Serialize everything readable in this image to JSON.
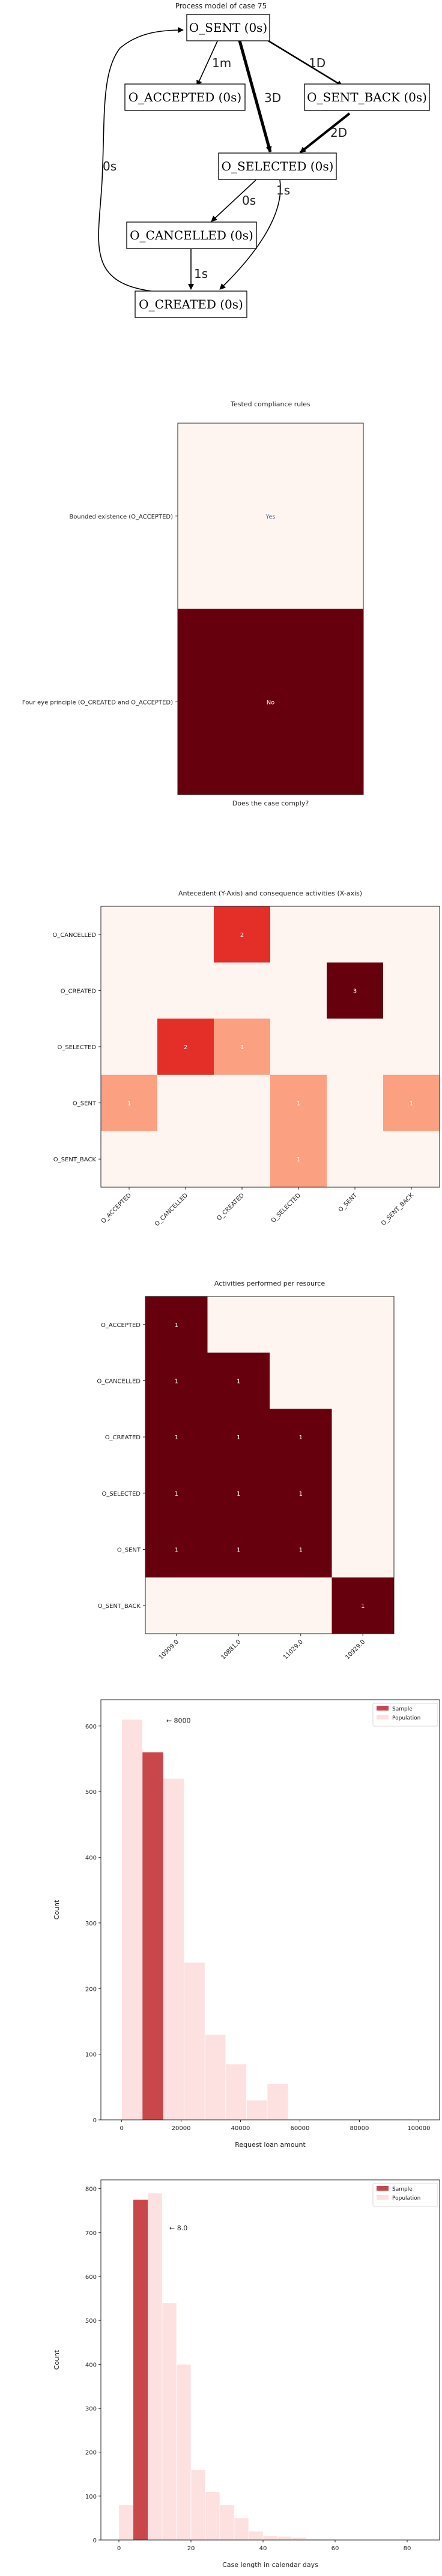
{
  "process_model": {
    "title": "Process model of case 75",
    "nodes": [
      {
        "id": "O_SENT",
        "label": "O_SENT (0s)"
      },
      {
        "id": "O_ACCEPTED",
        "label": "O_ACCEPTED (0s)"
      },
      {
        "id": "O_SENT_BACK",
        "label": "O_SENT_BACK (0s)"
      },
      {
        "id": "O_SELECTED",
        "label": "O_SELECTED (0s)"
      },
      {
        "id": "O_CANCELLED",
        "label": "O_CANCELLED (0s)"
      },
      {
        "id": "O_CREATED",
        "label": "O_CREATED (0s)"
      }
    ],
    "edges": [
      {
        "from": "O_SENT",
        "to": "O_ACCEPTED",
        "label": "1m"
      },
      {
        "from": "O_SENT",
        "to": "O_SELECTED",
        "label": "3D"
      },
      {
        "from": "O_SENT",
        "to": "O_SENT_BACK",
        "label": "1D"
      },
      {
        "from": "O_SENT_BACK",
        "to": "O_SELECTED",
        "label": "2D"
      },
      {
        "from": "O_SELECTED",
        "to": "O_CANCELLED",
        "label": "0s"
      },
      {
        "from": "O_SELECTED",
        "to": "O_CREATED",
        "label": "1s"
      },
      {
        "from": "O_CANCELLED",
        "to": "O_CREATED",
        "label": "1s"
      },
      {
        "from": "O_CREATED",
        "to": "O_SENT",
        "label": "0s"
      }
    ]
  },
  "chart_data": [
    {
      "type": "heatmap",
      "title": "Tested compliance rules",
      "xlabel": "Does the case comply?",
      "ylabel": "",
      "rows": [
        "Bounded existence (O_ACCEPTED)",
        "Four eye principle (O_CREATED and O_ACCEPTED)"
      ],
      "columns": [],
      "values": [
        [
          0
        ],
        [
          1
        ]
      ],
      "cell_labels": [
        [
          "Yes"
        ],
        [
          "No"
        ]
      ],
      "colors": {
        "low": "#fff5f0",
        "high": "#67000d",
        "label_low": "#4a6fa5",
        "label_high": "#ffffff"
      }
    },
    {
      "type": "heatmap",
      "title": "Antecedent (Y-Axis) and consequence activities (X-axis)",
      "xlabel": "",
      "ylabel": "",
      "rows": [
        "O_CANCELLED",
        "O_CREATED",
        "O_SELECTED",
        "O_SENT",
        "O_SENT_BACK"
      ],
      "columns": [
        "O_ACCEPTED",
        "O_CANCELLED",
        "O_CREATED",
        "O_SELECTED",
        "O_SENT",
        "O_SENT_BACK"
      ],
      "values": [
        [
          0,
          0,
          2,
          0,
          0,
          0
        ],
        [
          0,
          0,
          0,
          0,
          3,
          0
        ],
        [
          0,
          2,
          1,
          0,
          0,
          0
        ],
        [
          1,
          0,
          0,
          1,
          0,
          1
        ],
        [
          0,
          0,
          0,
          1,
          0,
          0
        ]
      ],
      "cell_labels": [
        [
          "",
          "",
          "2",
          "",
          "",
          ""
        ],
        [
          "",
          "",
          "",
          "",
          "3",
          ""
        ],
        [
          "",
          "2",
          "1",
          "",
          "",
          ""
        ],
        [
          "1",
          "",
          "",
          "1",
          "",
          "1"
        ],
        [
          "",
          "",
          "",
          "1",
          "",
          ""
        ]
      ]
    },
    {
      "type": "heatmap",
      "title": "Activities performed per resource",
      "xlabel": "",
      "ylabel": "",
      "rows": [
        "O_ACCEPTED",
        "O_CANCELLED",
        "O_CREATED",
        "O_SELECTED",
        "O_SENT",
        "O_SENT_BACK"
      ],
      "columns": [
        "10909.0",
        "10881.0",
        "11029.0",
        "10929.0"
      ],
      "values": [
        [
          1,
          0,
          0,
          0
        ],
        [
          1,
          1,
          0,
          0
        ],
        [
          1,
          1,
          1,
          0
        ],
        [
          1,
          1,
          1,
          0
        ],
        [
          1,
          1,
          1,
          0
        ],
        [
          0,
          0,
          0,
          1
        ]
      ],
      "cell_labels": [
        [
          "1",
          "",
          "",
          ""
        ],
        [
          "1",
          "1",
          "",
          ""
        ],
        [
          "1",
          "1",
          "1",
          ""
        ],
        [
          "1",
          "1",
          "1",
          ""
        ],
        [
          "1",
          "1",
          "1",
          ""
        ],
        [
          "",
          "",
          "",
          "1"
        ]
      ]
    },
    {
      "type": "bar",
      "title": "",
      "xlabel": "Request loan amount",
      "ylabel": "Count",
      "xlim": [
        -7000,
        107000
      ],
      "ylim": [
        0,
        640
      ],
      "xticks": [
        0,
        20000,
        40000,
        60000,
        80000,
        100000
      ],
      "yticks": [
        0,
        100,
        200,
        300,
        400,
        500,
        600
      ],
      "legend": "top-right",
      "annotation": "← 8000",
      "annotation_x": 15000,
      "annotation_y": 605,
      "series": [
        {
          "name": "Population",
          "color": "#fde1e1",
          "bins": [
            {
              "x0": 0,
              "x1": 7000,
              "y": 610
            },
            {
              "x0": 7000,
              "x1": 14000,
              "y": 555
            },
            {
              "x0": 14000,
              "x1": 21000,
              "y": 520
            },
            {
              "x0": 21000,
              "x1": 28000,
              "y": 240
            },
            {
              "x0": 28000,
              "x1": 35000,
              "y": 130
            },
            {
              "x0": 35000,
              "x1": 42000,
              "y": 85
            },
            {
              "x0": 42000,
              "x1": 49000,
              "y": 30
            },
            {
              "x0": 49000,
              "x1": 56000,
              "y": 55
            },
            {
              "x0": 56000,
              "x1": 63000,
              "y": 1
            },
            {
              "x0": 63000,
              "x1": 70000,
              "y": 1
            },
            {
              "x0": 70000,
              "x1": 77000,
              "y": 1
            },
            {
              "x0": 77000,
              "x1": 84000,
              "y": 1
            },
            {
              "x0": 84000,
              "x1": 91000,
              "y": 1
            },
            {
              "x0": 91000,
              "x1": 98000,
              "y": 1
            }
          ]
        },
        {
          "name": "Sample",
          "color": "#c9474b",
          "bins": [
            {
              "x0": 7000,
              "x1": 14000,
              "y": 560
            }
          ]
        }
      ]
    },
    {
      "type": "bar",
      "title": "",
      "xlabel": "Case length in calendar days",
      "ylabel": "Count",
      "xlim": [
        -5,
        89
      ],
      "ylim": [
        0,
        820
      ],
      "xticks": [
        0,
        20,
        40,
        60,
        80
      ],
      "yticks": [
        0,
        100,
        200,
        300,
        400,
        500,
        600,
        700,
        800
      ],
      "legend": "top-right",
      "annotation": "← 8.0",
      "annotation_x": 14,
      "annotation_y": 705,
      "series": [
        {
          "name": "Population",
          "color": "#fde1e1",
          "bins": [
            {
              "x0": 0,
              "x1": 4,
              "y": 80
            },
            {
              "x0": 4,
              "x1": 8,
              "y": 600
            },
            {
              "x0": 8,
              "x1": 12,
              "y": 790
            },
            {
              "x0": 12,
              "x1": 16,
              "y": 540
            },
            {
              "x0": 16,
              "x1": 20,
              "y": 400
            },
            {
              "x0": 20,
              "x1": 24,
              "y": 160
            },
            {
              "x0": 24,
              "x1": 28,
              "y": 110
            },
            {
              "x0": 28,
              "x1": 32,
              "y": 80
            },
            {
              "x0": 32,
              "x1": 36,
              "y": 50
            },
            {
              "x0": 36,
              "x1": 40,
              "y": 20
            },
            {
              "x0": 40,
              "x1": 44,
              "y": 10
            },
            {
              "x0": 44,
              "x1": 48,
              "y": 8
            },
            {
              "x0": 48,
              "x1": 52,
              "y": 6
            },
            {
              "x0": 52,
              "x1": 56,
              "y": 3
            },
            {
              "x0": 56,
              "x1": 60,
              "y": 2
            },
            {
              "x0": 60,
              "x1": 64,
              "y": 1
            },
            {
              "x0": 64,
              "x1": 68,
              "y": 1
            },
            {
              "x0": 68,
              "x1": 72,
              "y": 1
            },
            {
              "x0": 72,
              "x1": 76,
              "y": 1
            },
            {
              "x0": 76,
              "x1": 80,
              "y": 1
            },
            {
              "x0": 80,
              "x1": 84,
              "y": 1
            }
          ]
        },
        {
          "name": "Sample",
          "color": "#c9474b",
          "bins": [
            {
              "x0": 4,
              "x1": 8,
              "y": 775
            }
          ]
        }
      ]
    }
  ]
}
